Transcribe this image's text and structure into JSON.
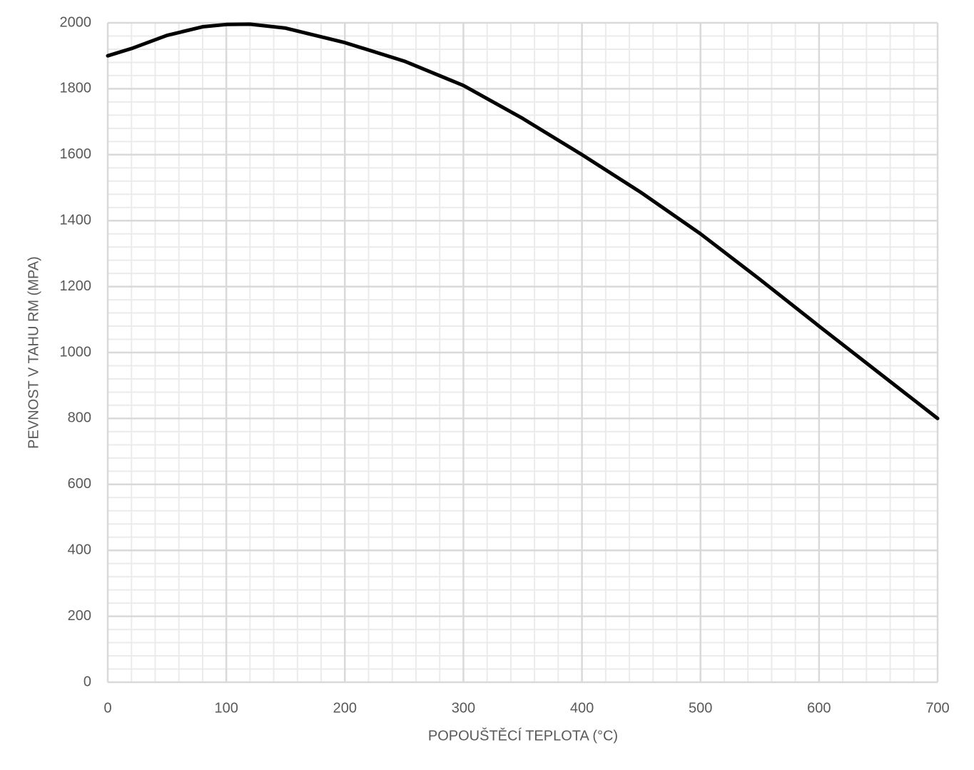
{
  "chart_data": {
    "type": "line",
    "x_label": "POPOUŠTĚCÍ TEPLOTA (°C)",
    "y_label": "PEVNOST V TAHU RM (MPA)",
    "x": [
      0,
      20,
      50,
      80,
      100,
      120,
      150,
      200,
      250,
      300,
      350,
      400,
      450,
      500,
      550,
      600,
      650,
      700
    ],
    "series": [
      {
        "name": "Rm",
        "color": "#000000",
        "values": [
          1900,
          1922,
          1962,
          1988,
          1995,
          1996,
          1984,
          1940,
          1884,
          1810,
          1710,
          1600,
          1485,
          1360,
          1222,
          1080,
          940,
          800
        ]
      }
    ],
    "xlim": [
      0,
      700
    ],
    "xticks": [
      0,
      100,
      200,
      300,
      400,
      500,
      600,
      700
    ],
    "ylim": [
      0,
      2000
    ],
    "yticks": [
      0,
      200,
      400,
      600,
      800,
      1000,
      1200,
      1400,
      1600,
      1800,
      2000
    ],
    "grid": true,
    "minor_grid": true
  }
}
